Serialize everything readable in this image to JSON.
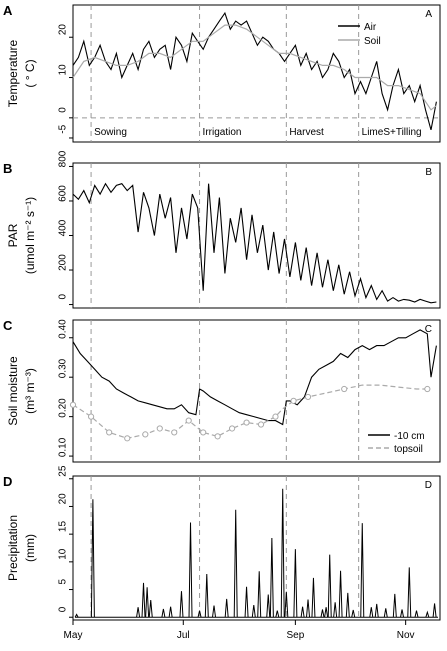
{
  "chart_data": [
    {
      "type": "line",
      "panel_label": "A",
      "corner_label": "A",
      "ylabel_line1": "Temperature",
      "ylabel_line2": "( ° C)",
      "ylim": [
        -6,
        28
      ],
      "yticks": [
        -5,
        0,
        10,
        20
      ],
      "zero_line": true,
      "legend_position": "top-right",
      "events": [
        {
          "label": "Sowing",
          "day": 10
        },
        {
          "label": "Irrigation",
          "day": 70
        },
        {
          "label": "Harvest",
          "day": 118
        },
        {
          "label": "LimeS+Tilling",
          "day": 158
        }
      ],
      "series": [
        {
          "name": "Air",
          "color": "#000000",
          "x": [
            0,
            3,
            6,
            9,
            12,
            15,
            18,
            21,
            24,
            27,
            30,
            33,
            36,
            39,
            42,
            45,
            48,
            51,
            54,
            57,
            60,
            63,
            66,
            69,
            72,
            75,
            78,
            81,
            84,
            87,
            90,
            93,
            96,
            99,
            102,
            105,
            108,
            111,
            114,
            117,
            120,
            123,
            126,
            129,
            132,
            135,
            138,
            141,
            144,
            147,
            150,
            153,
            156,
            159,
            162,
            165,
            168,
            171,
            174,
            177,
            180,
            183,
            186,
            189,
            192,
            195,
            198,
            201
          ],
          "y": [
            13,
            15,
            19,
            13,
            15,
            18,
            14,
            12,
            16,
            10,
            13,
            16,
            12,
            17,
            19,
            15,
            17,
            18,
            12,
            20,
            18,
            14,
            21,
            19,
            17,
            20,
            22,
            24,
            26,
            22,
            24,
            23,
            24,
            21,
            18,
            20,
            19,
            17,
            16,
            14,
            16,
            18,
            13,
            16,
            12,
            14,
            10,
            12,
            16,
            14,
            10,
            12,
            6,
            9,
            6,
            10,
            14,
            6,
            2,
            8,
            12,
            6,
            8,
            4,
            8,
            2,
            -3,
            4
          ]
        },
        {
          "name": "Soil",
          "color": "#aaaaaa",
          "x": [
            0,
            6,
            12,
            18,
            24,
            30,
            36,
            42,
            48,
            54,
            60,
            66,
            72,
            78,
            84,
            90,
            96,
            102,
            108,
            114,
            120,
            126,
            132,
            138,
            144,
            150,
            156,
            162,
            168,
            174,
            180,
            186,
            192,
            198,
            201
          ],
          "y": [
            10,
            14,
            15,
            14,
            13,
            13,
            14,
            16,
            16,
            15,
            17,
            19,
            19,
            21,
            23,
            23,
            22,
            20,
            18,
            16,
            16,
            15,
            14,
            13,
            13,
            12,
            10,
            10,
            10,
            8,
            8,
            7,
            6,
            2,
            3
          ]
        }
      ]
    },
    {
      "type": "line",
      "panel_label": "B",
      "corner_label": "B",
      "ylabel_line1": "PAR",
      "ylabel_line2": "(umol m⁻² s⁻¹)",
      "ylim": [
        -20,
        820
      ],
      "yticks": [
        0,
        200,
        400,
        600,
        800
      ],
      "series": [
        {
          "name": "",
          "color": "#000000",
          "x": [
            0,
            3,
            6,
            9,
            12,
            15,
            18,
            21,
            24,
            27,
            30,
            33,
            36,
            39,
            42,
            45,
            48,
            51,
            54,
            57,
            60,
            63,
            66,
            69,
            72,
            75,
            78,
            81,
            84,
            87,
            90,
            93,
            96,
            99,
            102,
            105,
            108,
            111,
            114,
            117,
            120,
            123,
            126,
            129,
            132,
            135,
            138,
            141,
            144,
            147,
            150,
            153,
            156,
            159,
            162,
            165,
            168,
            171,
            174,
            177,
            180,
            183,
            186,
            189,
            192,
            195,
            198,
            201
          ],
          "y": [
            640,
            610,
            660,
            590,
            690,
            640,
            700,
            650,
            690,
            700,
            660,
            690,
            420,
            650,
            560,
            400,
            640,
            500,
            620,
            300,
            560,
            380,
            640,
            560,
            80,
            700,
            300,
            620,
            180,
            500,
            360,
            560,
            260,
            520,
            300,
            460,
            200,
            420,
            180,
            380,
            160,
            360,
            140,
            330,
            110,
            300,
            100,
            260,
            80,
            230,
            60,
            190,
            50,
            150,
            40,
            110,
            30,
            80,
            20,
            40,
            20,
            30,
            25,
            15,
            30,
            20,
            10,
            15
          ]
        }
      ]
    },
    {
      "type": "line",
      "panel_label": "C",
      "corner_label": "C",
      "ylabel_line1": "Soil moisture",
      "ylabel_line2": "(m³ m⁻³)",
      "ylim": [
        0.085,
        0.445
      ],
      "yticks": [
        0.1,
        0.2,
        0.3,
        0.4
      ],
      "ytick_labels": [
        "0.10",
        "0.20",
        "0.30",
        "0.40"
      ],
      "legend_position": "bottom-right",
      "series": [
        {
          "name": "-10 cm",
          "color": "#000000",
          "x": [
            0,
            4,
            8,
            12,
            16,
            20,
            24,
            28,
            32,
            36,
            40,
            44,
            48,
            52,
            56,
            60,
            64,
            68,
            70,
            72,
            76,
            80,
            84,
            88,
            92,
            96,
            100,
            104,
            108,
            112,
            116,
            118,
            120,
            124,
            128,
            132,
            136,
            140,
            144,
            148,
            152,
            156,
            160,
            164,
            168,
            172,
            176,
            180,
            184,
            188,
            192,
            196,
            198,
            201
          ],
          "y": [
            0.39,
            0.36,
            0.34,
            0.32,
            0.3,
            0.29,
            0.27,
            0.26,
            0.25,
            0.24,
            0.235,
            0.23,
            0.225,
            0.22,
            0.22,
            0.23,
            0.21,
            0.205,
            0.27,
            0.265,
            0.25,
            0.24,
            0.23,
            0.22,
            0.21,
            0.205,
            0.2,
            0.195,
            0.19,
            0.19,
            0.18,
            0.24,
            0.24,
            0.23,
            0.25,
            0.3,
            0.32,
            0.33,
            0.34,
            0.36,
            0.35,
            0.37,
            0.38,
            0.37,
            0.38,
            0.38,
            0.39,
            0.4,
            0.4,
            0.41,
            0.42,
            0.41,
            0.3,
            0.38
          ]
        },
        {
          "name": "topsoil",
          "color": "#aaaaaa",
          "dashed": true,
          "x": [
            0,
            10,
            20,
            30,
            40,
            48,
            56,
            64,
            72,
            80,
            88,
            96,
            104,
            112,
            116,
            122,
            130,
            140,
            150,
            160,
            170,
            180,
            190,
            196
          ],
          "y": [
            0.23,
            0.2,
            0.16,
            0.145,
            0.155,
            0.17,
            0.16,
            0.19,
            0.16,
            0.15,
            0.17,
            0.185,
            0.18,
            0.2,
            0.22,
            0.24,
            0.25,
            0.26,
            0.27,
            0.28,
            0.28,
            0.275,
            0.27,
            0.27
          ],
          "markers_x": [
            0,
            10,
            20,
            30,
            40,
            48,
            56,
            64,
            72,
            80,
            88,
            96,
            104,
            112,
            122,
            130,
            150,
            196
          ],
          "markers_y": [
            0.23,
            0.2,
            0.16,
            0.145,
            0.155,
            0.17,
            0.16,
            0.19,
            0.16,
            0.15,
            0.17,
            0.185,
            0.18,
            0.2,
            0.24,
            0.25,
            0.27,
            0.27
          ]
        }
      ]
    },
    {
      "type": "bar",
      "panel_label": "D",
      "corner_label": "D",
      "ylabel_line1": "Precipitation",
      "ylabel_line2": "(mm)",
      "ylim": [
        -0.5,
        25.5
      ],
      "yticks": [
        0,
        5,
        10,
        15,
        20,
        25
      ],
      "series": [
        {
          "name": "",
          "color": "#000000",
          "x": [
            2,
            11,
            36,
            39,
            41,
            43,
            50,
            54,
            60,
            65,
            70,
            74,
            78,
            85,
            90,
            96,
            100,
            103,
            108,
            110,
            113,
            116,
            118,
            123,
            127,
            130,
            133,
            138,
            140,
            142,
            145,
            148,
            152,
            155,
            160,
            165,
            168,
            173,
            178,
            182,
            186,
            190,
            196,
            200
          ],
          "y": [
            0.5,
            21.3,
            1.8,
            6.2,
            5.4,
            3.1,
            1.5,
            1.9,
            4.7,
            17.1,
            1.2,
            7.8,
            2.1,
            3.3,
            19.4,
            5.5,
            2.2,
            8.3,
            4.1,
            14.3,
            1.2,
            23.2,
            4.6,
            12.3,
            1.9,
            3.2,
            7.1,
            1.4,
            1.8,
            11.3,
            2.7,
            8.4,
            4.4,
            1.3,
            17.0,
            1.8,
            2.4,
            1.6,
            4.2,
            1.4,
            9.0,
            1.2,
            0.9,
            2.5
          ]
        }
      ]
    }
  ],
  "xaxis": {
    "ticks": [
      {
        "label": "May",
        "day": 0
      },
      {
        "label": "Jul",
        "day": 61
      },
      {
        "label": "Sep",
        "day": 123
      },
      {
        "label": "Nov",
        "day": 184
      }
    ],
    "xlim": [
      0,
      203
    ]
  }
}
